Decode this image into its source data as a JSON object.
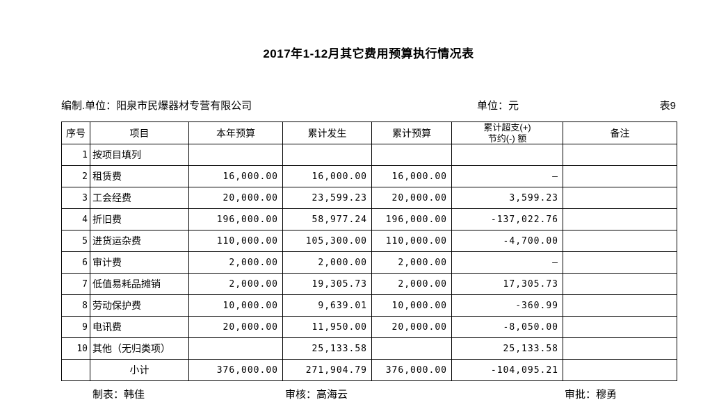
{
  "page": {
    "title": "2017年1-12月其它费用预算执行情况表",
    "prepared_by": "编制.单位：阳泉市民爆器材专营有限公司",
    "currency_unit": "单位：元",
    "sheet_number": "表9",
    "footer": {
      "preparer": "制表：韩佳",
      "reviewer": "审核：高海云",
      "approver": "审批：穆勇"
    }
  },
  "table": {
    "headers": [
      "序号",
      "项目",
      "本年预算",
      "累计发生",
      "累计预算",
      "累计超支(+)\n节约(-) 额",
      "备注"
    ],
    "rows": [
      [
        "1",
        "按项目填列",
        "",
        "",
        "",
        "",
        ""
      ],
      [
        "2",
        "租赁费",
        "16,000.00",
        "16,000.00",
        "16,000.00",
        "–",
        ""
      ],
      [
        "3",
        "工会经费",
        "20,000.00",
        "23,599.23",
        "20,000.00",
        "3,599.23",
        ""
      ],
      [
        "4",
        "折旧费",
        "196,000.00",
        "58,977.24",
        "196,000.00",
        "-137,022.76",
        ""
      ],
      [
        "5",
        "进货运杂费",
        "110,000.00",
        "105,300.00",
        "110,000.00",
        "-4,700.00",
        ""
      ],
      [
        "6",
        "审计费",
        "2,000.00",
        "2,000.00",
        "2,000.00",
        "–",
        ""
      ],
      [
        "7",
        "低值易耗品摊销",
        "2,000.00",
        "19,305.73",
        "2,000.00",
        "17,305.73",
        ""
      ],
      [
        "8",
        "劳动保护费",
        "10,000.00",
        "9,639.01",
        "10,000.00",
        "-360.99",
        ""
      ],
      [
        "9",
        "电讯费",
        "20,000.00",
        "11,950.00",
        "20,000.00",
        "-8,050.00",
        ""
      ],
      [
        "10",
        "其他（无归类项）",
        "",
        "25,133.58",
        "",
        "25,133.58",
        ""
      ],
      [
        "",
        "小计",
        "376,000.00",
        "271,904.79",
        "376,000.00",
        "-104,095.21",
        ""
      ]
    ]
  }
}
